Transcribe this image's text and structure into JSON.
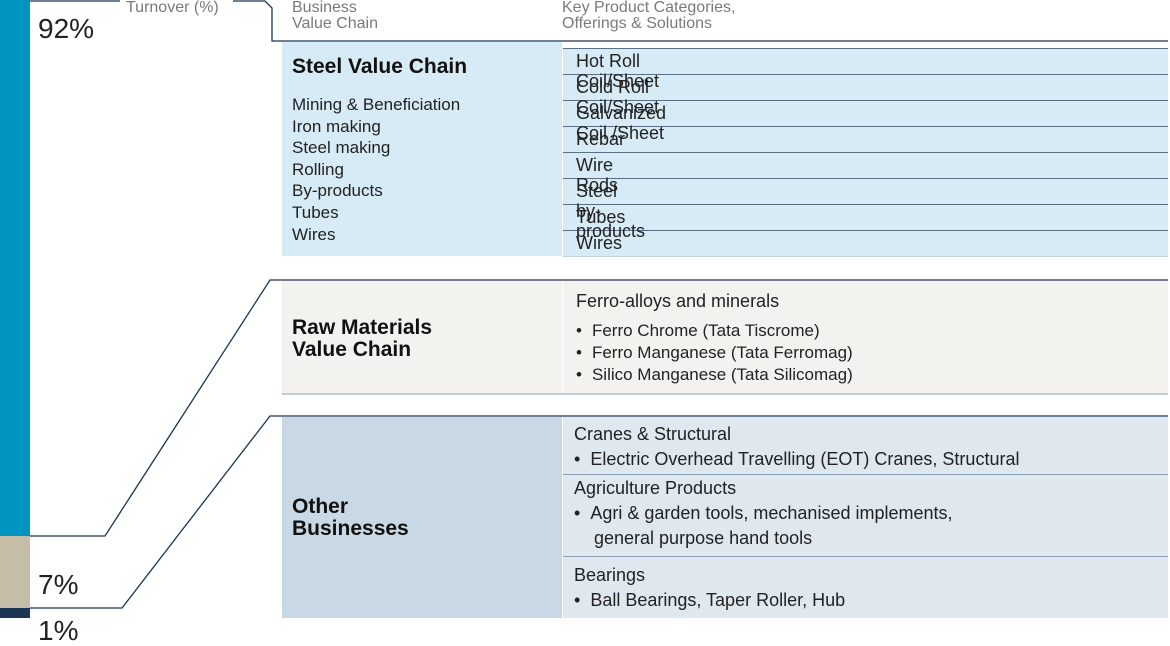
{
  "headers": {
    "turnover": "Turnover (%)",
    "business_line1": "Business",
    "business_line2": "Value Chain",
    "products_line1": "Key Product Categories,",
    "products_line2": "Offerings & Solutions"
  },
  "turnover": {
    "steel": "92%",
    "raw": "7%",
    "other": "1%"
  },
  "turnover_values": {
    "steel": 92,
    "raw": 7,
    "other": 1
  },
  "colors": {
    "steel_bar": "#0094c1",
    "raw_bar": "#c6bda9",
    "other_bar": "#1b3552",
    "steel_bg": "#d7ebf6",
    "raw_bg": "#f3f2ee",
    "other_bg": "#c9d8e5",
    "other_bg_right": "#dfe7ef",
    "line": "#1b3552"
  },
  "steel": {
    "title": "Steel Value Chain",
    "items": [
      "Mining & Beneficiation",
      "Iron making",
      "Steel making",
      "Rolling",
      "By-products",
      "Tubes",
      "Wires"
    ],
    "products": [
      "Hot Roll Coil/Sheet",
      "Cold Roll Coil/Sheet",
      "Galvanized Coil /Sheet",
      "Rebar",
      "Wire Rods",
      "Steel by-products",
      "Tubes",
      "Wires"
    ]
  },
  "raw": {
    "title_line1": "Raw Materials",
    "title_line2": "Value Chain",
    "heading": "Ferro-alloys and minerals",
    "bullets": [
      "Ferro Chrome (Tata Tiscrome)",
      "Ferro Manganese (Tata Ferromag)",
      "Silico Manganese (Tata Silicomag)"
    ]
  },
  "other": {
    "title_line1": "Other",
    "title_line2": "Businesses",
    "groups": [
      {
        "heading": "Cranes & Structural",
        "bullet_line1": "Electric Overhead Travelling (EOT) Cranes, Structural",
        "bullet_line2": ""
      },
      {
        "heading": "Agriculture Products",
        "bullet_line1": "Agri & garden tools, mechanised implements,",
        "bullet_line2": "general purpose hand tools"
      },
      {
        "heading": "Bearings",
        "bullet_line1": "Ball Bearings, Taper Roller, Hub",
        "bullet_line2": ""
      }
    ]
  }
}
